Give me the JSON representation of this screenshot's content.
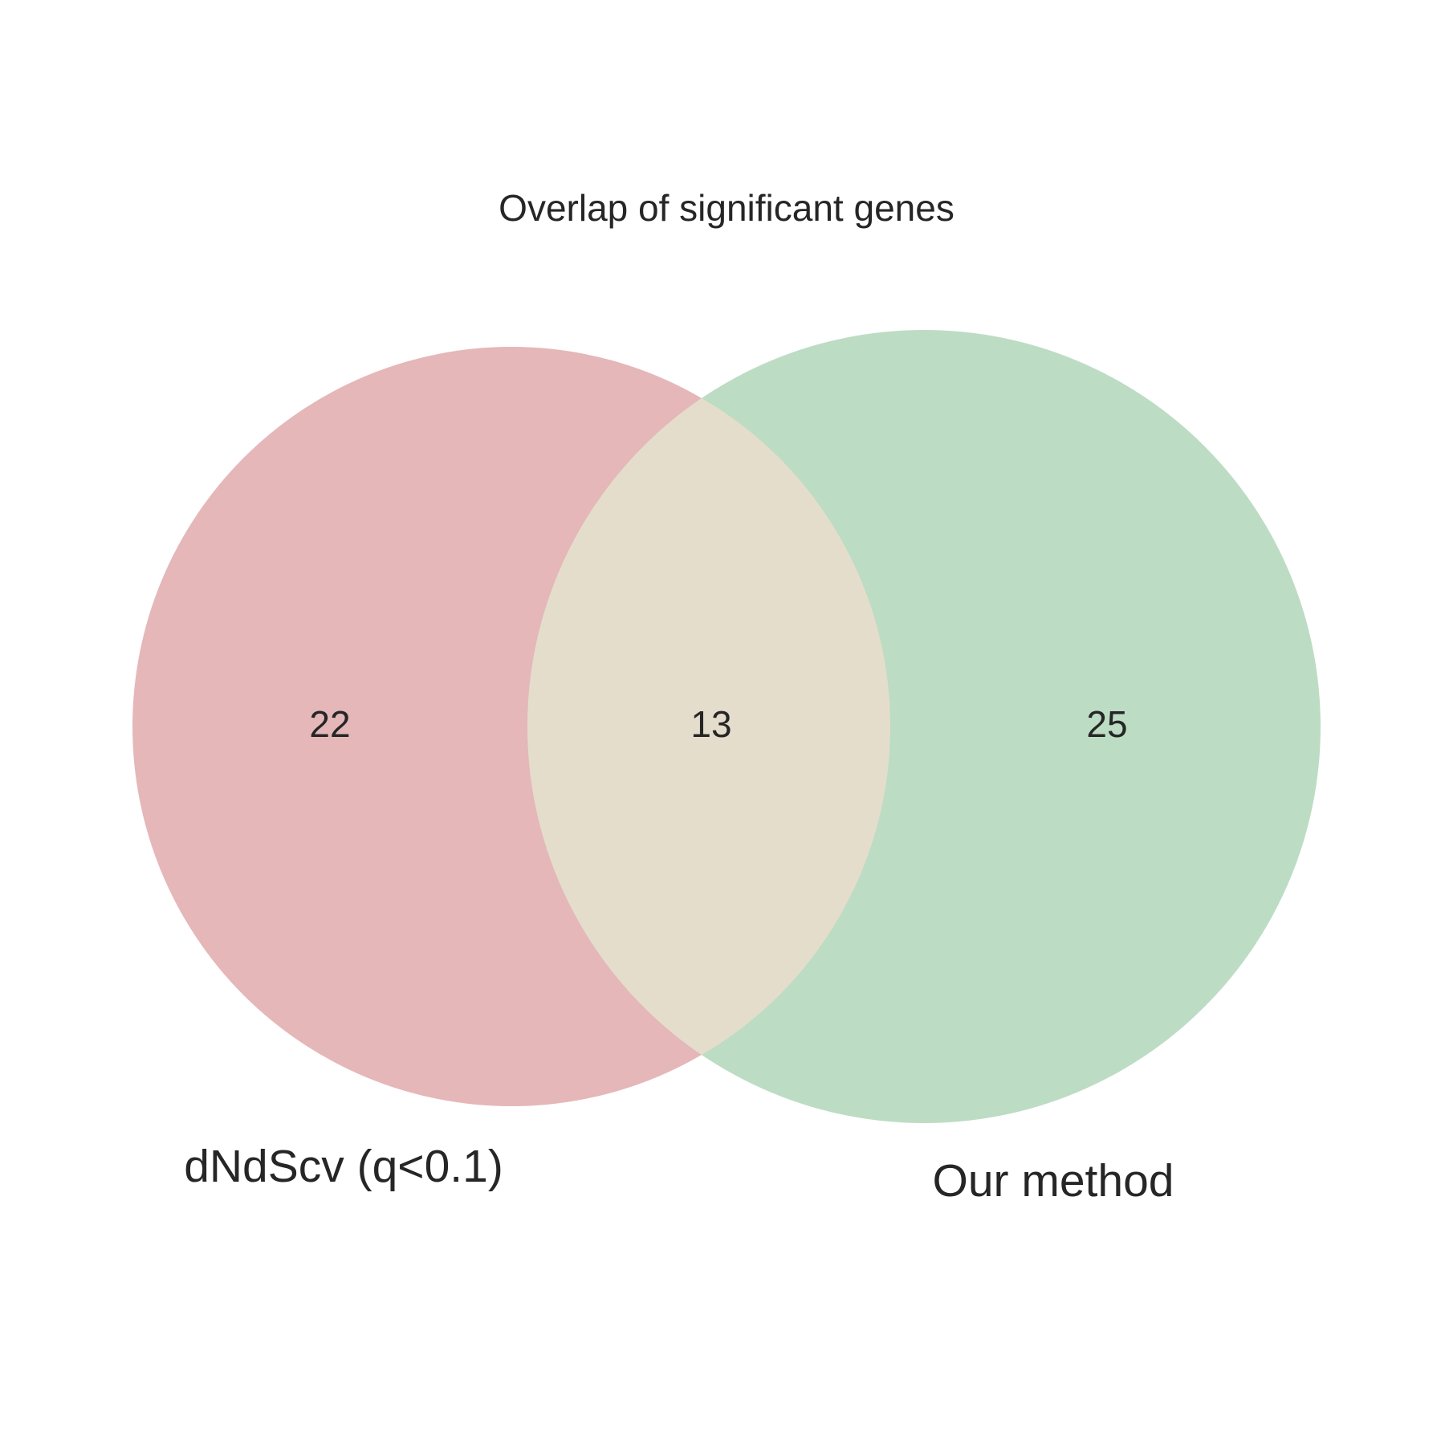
{
  "title": "Overlap of significant genes",
  "sets": [
    {
      "label": "dNdScv (q<0.1)",
      "only_count": "22",
      "color": "#e5b7b9"
    },
    {
      "label": "Our method",
      "only_count": "25",
      "color": "#bddcc4"
    }
  ],
  "intersection": {
    "count": "13",
    "color": "#e5ddcc"
  },
  "text_color": "#262626"
}
